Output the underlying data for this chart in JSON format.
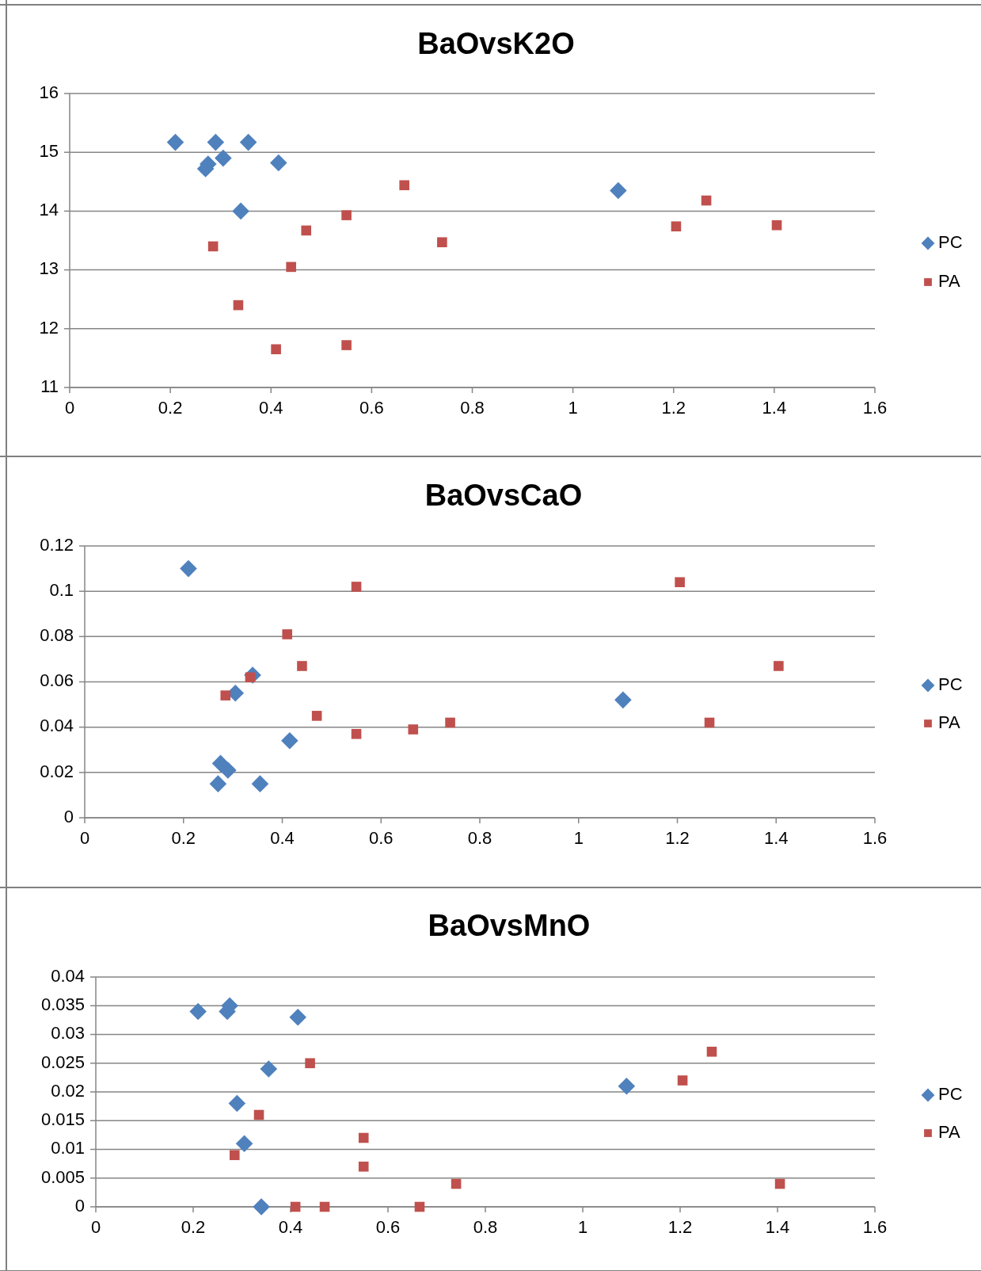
{
  "chart_data": [
    {
      "type": "scatter",
      "title": "BaOvsK2O",
      "xlim": [
        0,
        1.6
      ],
      "xticks": [
        0,
        0.2,
        0.4,
        0.6,
        0.8,
        1,
        1.2,
        1.4,
        1.6
      ],
      "ylim": [
        11,
        16
      ],
      "yticks": [
        11,
        12,
        13,
        14,
        15,
        16
      ],
      "grid": "y",
      "legend": "right",
      "series": [
        {
          "name": "PC",
          "color": "#4f81bd",
          "marker": "diamond",
          "x": [
            0.21,
            0.27,
            0.275,
            0.29,
            0.305,
            0.34,
            0.355,
            0.415,
            1.09
          ],
          "values": [
            15.17,
            14.72,
            14.8,
            15.17,
            14.9,
            14.0,
            15.17,
            14.82,
            14.35
          ]
        },
        {
          "name": "PA",
          "color": "#c0504d",
          "marker": "square",
          "x": [
            0.285,
            0.335,
            0.41,
            0.44,
            0.47,
            0.55,
            0.55,
            0.665,
            0.74,
            1.205,
            1.265,
            1.405
          ],
          "values": [
            13.4,
            12.4,
            11.65,
            13.05,
            13.67,
            13.93,
            11.72,
            14.44,
            13.47,
            13.74,
            14.18,
            13.76
          ]
        }
      ]
    },
    {
      "type": "scatter",
      "title": "BaOvsCaO",
      "xlim": [
        0,
        1.6
      ],
      "xticks": [
        0,
        0.2,
        0.4,
        0.6,
        0.8,
        1,
        1.2,
        1.4,
        1.6
      ],
      "ylim": [
        0,
        0.12
      ],
      "yticks": [
        0,
        0.02,
        0.04,
        0.06,
        0.08,
        0.1,
        0.12
      ],
      "grid": "y",
      "legend": "right",
      "series": [
        {
          "name": "PC",
          "color": "#4f81bd",
          "marker": "diamond",
          "x": [
            0.21,
            0.27,
            0.275,
            0.29,
            0.305,
            0.34,
            0.355,
            0.415,
            1.09
          ],
          "values": [
            0.11,
            0.015,
            0.024,
            0.021,
            0.055,
            0.063,
            0.015,
            0.034,
            0.052
          ]
        },
        {
          "name": "PA",
          "color": "#c0504d",
          "marker": "square",
          "x": [
            0.285,
            0.335,
            0.41,
            0.44,
            0.47,
            0.55,
            0.55,
            0.665,
            0.74,
            1.205,
            1.265,
            1.405
          ],
          "values": [
            0.054,
            0.062,
            0.081,
            0.067,
            0.045,
            0.102,
            0.037,
            0.039,
            0.042,
            0.104,
            0.042,
            0.067
          ]
        }
      ]
    },
    {
      "type": "scatter",
      "title": "BaOvsMnO",
      "xlim": [
        0,
        1.6
      ],
      "xticks": [
        0,
        0.2,
        0.4,
        0.6,
        0.8,
        1,
        1.2,
        1.4,
        1.6
      ],
      "ylim": [
        0,
        0.04
      ],
      "yticks": [
        0,
        0.005,
        0.01,
        0.015,
        0.02,
        0.025,
        0.03,
        0.035,
        0.04
      ],
      "grid": "y",
      "legend": "right",
      "series": [
        {
          "name": "PC",
          "color": "#4f81bd",
          "marker": "diamond",
          "x": [
            0.21,
            0.27,
            0.275,
            0.29,
            0.305,
            0.34,
            0.355,
            0.415,
            1.09
          ],
          "values": [
            0.034,
            0.034,
            0.035,
            0.018,
            0.011,
            0,
            0.024,
            0.033,
            0.021
          ]
        },
        {
          "name": "PA",
          "color": "#c0504d",
          "marker": "square",
          "x": [
            0.285,
            0.335,
            0.41,
            0.44,
            0.47,
            0.55,
            0.55,
            0.665,
            0.74,
            1.205,
            1.265,
            1.405
          ],
          "values": [
            0.009,
            0.016,
            0,
            0.025,
            0,
            0.012,
            0.007,
            0,
            0.004,
            0.022,
            0.027,
            0.004
          ]
        }
      ]
    }
  ]
}
